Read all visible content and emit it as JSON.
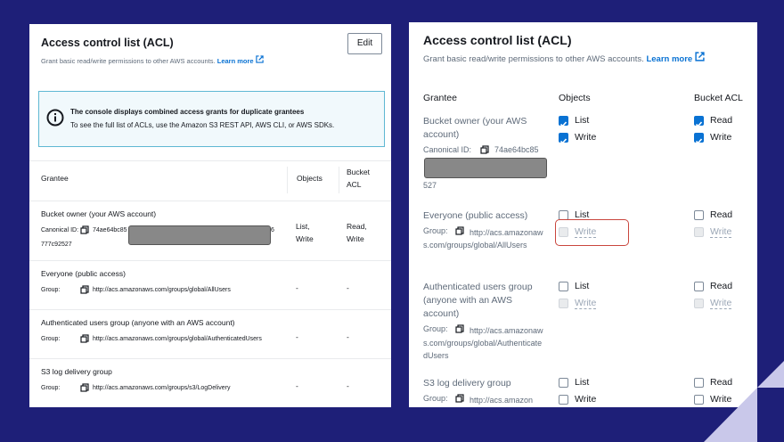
{
  "left": {
    "title": "Access control list (ACL)",
    "subtitle": "Grant basic read/write permissions to other AWS accounts.",
    "learn_more": "Learn more",
    "edit": "Edit",
    "alert": {
      "title": "The console displays combined access grants for duplicate grantees",
      "text": "To see the full list of ACLs, use the Amazon S3 REST API, AWS CLI, or AWS SDKs."
    },
    "columns": [
      "Grantee",
      "Objects",
      "Bucket ACL"
    ],
    "rows": [
      {
        "grantee": "Bucket owner (your AWS account)",
        "id_label": "Canonical ID:",
        "id_value": "74ae64bc85",
        "id_tail": "6",
        "id_line2": "777c92527",
        "objects": "List, Write",
        "bucket_acl": "Read, Write"
      },
      {
        "grantee": "Everyone (public access)",
        "id_label": "Group:",
        "id_value": "http://acs.amazonaws.com/groups/global/AllUsers",
        "objects": "-",
        "bucket_acl": "-"
      },
      {
        "grantee": "Authenticated users group (anyone with an AWS account)",
        "id_label": "Group:",
        "id_value": "http://acs.amazonaws.com/groups/global/AuthenticatedUsers",
        "objects": "-",
        "bucket_acl": "-"
      },
      {
        "grantee": "S3 log delivery group",
        "id_label": "Group:",
        "id_value": "http://acs.amazonaws.com/groups/s3/LogDelivery",
        "objects": "-",
        "bucket_acl": "-"
      }
    ]
  },
  "right": {
    "title": "Access control list (ACL)",
    "subtitle": "Grant basic read/write permissions to other AWS accounts.",
    "learn_more": "Learn more",
    "columns": [
      "Grantee",
      "Objects",
      "Bucket ACL"
    ],
    "rows": [
      {
        "grantee": "Bucket owner (your AWS account)",
        "id_label": "Canonical ID:",
        "id_value": "74ae64bc85",
        "id_tail": "527",
        "objects": [
          {
            "label": "List",
            "checked": true,
            "disabled": false
          },
          {
            "label": "Write",
            "checked": true,
            "disabled": false
          }
        ],
        "bucket_acl": [
          {
            "label": "Read",
            "checked": true,
            "disabled": false
          },
          {
            "label": "Write",
            "checked": true,
            "disabled": false
          }
        ]
      },
      {
        "grantee": "Everyone (public access)",
        "id_label": "Group:",
        "id_value": "http://acs.amazonaws.com/groups/global/AllUsers",
        "objects": [
          {
            "label": "List",
            "checked": false,
            "disabled": false
          },
          {
            "label": "Write",
            "checked": false,
            "disabled": true,
            "highlighted": true
          }
        ],
        "bucket_acl": [
          {
            "label": "Read",
            "checked": false,
            "disabled": false
          },
          {
            "label": "Write",
            "checked": false,
            "disabled": true
          }
        ]
      },
      {
        "grantee": "Authenticated users group (anyone with an AWS account)",
        "id_label": "Group:",
        "id_value": "http://acs.amazonaws.com/groups/global/AuthenticatedUsers",
        "objects": [
          {
            "label": "List",
            "checked": false,
            "disabled": false
          },
          {
            "label": "Write",
            "checked": false,
            "disabled": true
          }
        ],
        "bucket_acl": [
          {
            "label": "Read",
            "checked": false,
            "disabled": false
          },
          {
            "label": "Write",
            "checked": false,
            "disabled": true
          }
        ]
      },
      {
        "grantee": "S3 log delivery group",
        "id_label": "Group:",
        "id_value": "http://acs.amazon",
        "objects": [
          {
            "label": "List",
            "checked": false,
            "disabled": false
          },
          {
            "label": "Write",
            "checked": false,
            "disabled": false
          }
        ],
        "bucket_acl": [
          {
            "label": "Read",
            "checked": false,
            "disabled": false
          },
          {
            "label": "Write",
            "checked": false,
            "disabled": false
          }
        ]
      }
    ]
  }
}
